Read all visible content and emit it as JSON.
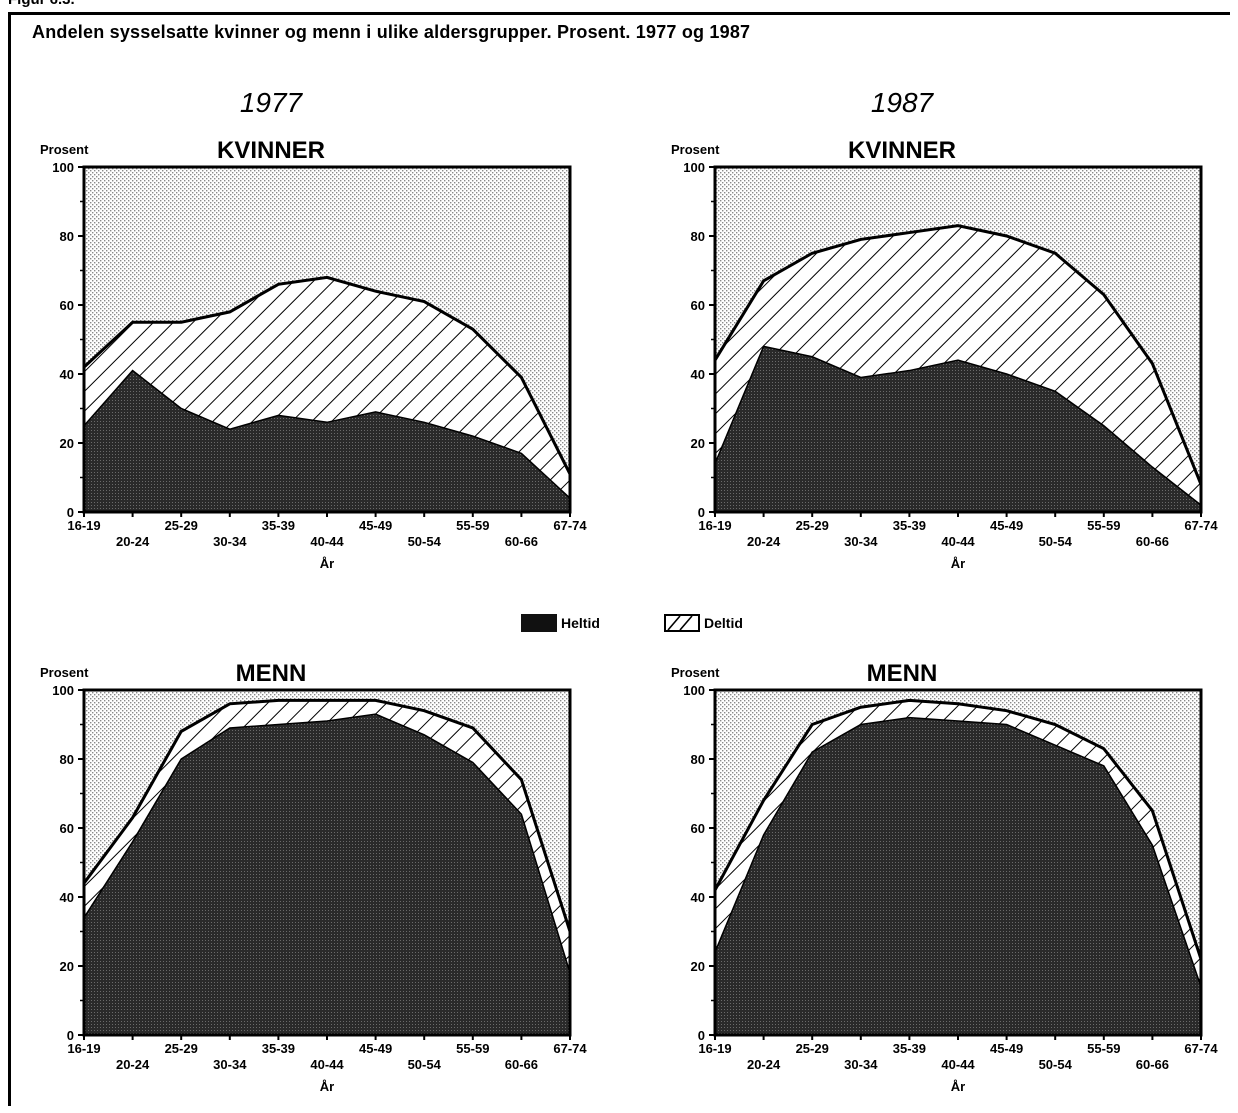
{
  "figure": {
    "label": "Figur 6.3.",
    "title": "Andelen sysselsatte kvinner og menn i ulike aldersgrupper. Prosent. 1977 og 1987"
  },
  "legend": {
    "fulltime": "Heltid",
    "parttime": "Deltid"
  },
  "colors": {
    "ink": "#000000",
    "fulltime_fill": "#2e2e2e",
    "background_dots": "#cfcfcf"
  },
  "chart_data": [
    {
      "type": "area",
      "stacked": true,
      "year_title": "1977",
      "title": "KVINNER",
      "ylabel": "Prosent",
      "xlabel": "År",
      "ylim": [
        0,
        100
      ],
      "yticks": [
        0,
        20,
        40,
        60,
        80,
        100
      ],
      "categories": [
        "16-19",
        "20-24",
        "25-29",
        "30-34",
        "35-39",
        "40-44",
        "45-49",
        "50-54",
        "55-59",
        "60-66",
        "67-74"
      ],
      "series": [
        {
          "name": "Heltid",
          "values": [
            25,
            41,
            30,
            24,
            28,
            26,
            29,
            26,
            22,
            17,
            4
          ]
        },
        {
          "name": "Deltid",
          "values": [
            17,
            14,
            25,
            34,
            38,
            42,
            35,
            35,
            31,
            22,
            7
          ]
        }
      ],
      "totals": [
        42,
        55,
        55,
        58,
        66,
        68,
        64,
        61,
        53,
        39,
        11
      ]
    },
    {
      "type": "area",
      "stacked": true,
      "year_title": "1987",
      "title": "KVINNER",
      "ylabel": "Prosent",
      "xlabel": "År",
      "ylim": [
        0,
        100
      ],
      "yticks": [
        0,
        20,
        40,
        60,
        80,
        100
      ],
      "categories": [
        "16-19",
        "20-24",
        "25-29",
        "30-34",
        "35-39",
        "40-44",
        "45-49",
        "50-54",
        "55-59",
        "60-66",
        "67-74"
      ],
      "series": [
        {
          "name": "Heltid",
          "values": [
            14,
            48,
            45,
            39,
            41,
            44,
            40,
            35,
            25,
            13,
            2
          ]
        },
        {
          "name": "Deltid",
          "values": [
            30,
            19,
            30,
            40,
            40,
            39,
            40,
            40,
            38,
            30,
            6
          ]
        }
      ],
      "totals": [
        44,
        67,
        75,
        79,
        81,
        83,
        80,
        75,
        63,
        43,
        8
      ]
    },
    {
      "type": "area",
      "stacked": true,
      "title": "MENN",
      "ylabel": "Prosent",
      "xlabel": "År",
      "ylim": [
        0,
        100
      ],
      "yticks": [
        0,
        20,
        40,
        60,
        80,
        100
      ],
      "categories": [
        "16-19",
        "20-24",
        "25-29",
        "30-34",
        "35-39",
        "40-44",
        "45-49",
        "50-54",
        "55-59",
        "60-66",
        "67-74"
      ],
      "series": [
        {
          "name": "Heltid",
          "values": [
            34,
            56,
            80,
            89,
            90,
            91,
            93,
            87,
            79,
            64,
            18
          ]
        },
        {
          "name": "Deltid",
          "values": [
            10,
            7,
            8,
            7,
            7,
            6,
            4,
            7,
            10,
            10,
            12
          ]
        }
      ],
      "totals": [
        44,
        63,
        88,
        96,
        97,
        97,
        97,
        94,
        89,
        74,
        30
      ]
    },
    {
      "type": "area",
      "stacked": true,
      "title": "MENN",
      "ylabel": "Prosent",
      "xlabel": "År",
      "ylim": [
        0,
        100
      ],
      "yticks": [
        0,
        20,
        40,
        60,
        80,
        100
      ],
      "categories": [
        "16-19",
        "20-24",
        "25-29",
        "30-34",
        "35-39",
        "40-44",
        "45-49",
        "50-54",
        "55-59",
        "60-66",
        "67-74"
      ],
      "series": [
        {
          "name": "Heltid",
          "values": [
            24,
            58,
            82,
            90,
            92,
            91,
            90,
            84,
            78,
            55,
            14
          ]
        },
        {
          "name": "Deltid",
          "values": [
            18,
            10,
            8,
            5,
            5,
            5,
            4,
            6,
            5,
            10,
            8
          ]
        }
      ],
      "totals": [
        42,
        68,
        90,
        95,
        97,
        96,
        94,
        90,
        83,
        65,
        22
      ]
    }
  ]
}
